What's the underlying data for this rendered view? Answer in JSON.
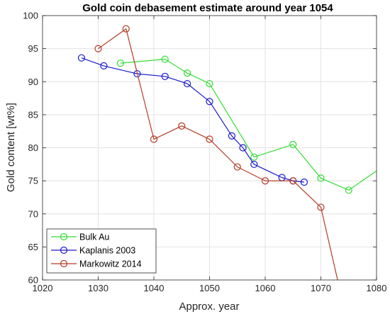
{
  "chart_data": {
    "type": "line",
    "title": "Gold coin debasement estimate around year 1054",
    "xlabel": "Approx. year",
    "ylabel": "Gold content [wt%]",
    "xlim": [
      1020,
      1080
    ],
    "ylim": [
      60,
      100
    ],
    "xticks": [
      1020,
      1030,
      1040,
      1050,
      1060,
      1070,
      1080
    ],
    "yticks": [
      60,
      65,
      70,
      75,
      80,
      85,
      90,
      95,
      100
    ],
    "xtick_labels": [
      "1020",
      "1030",
      "1040",
      "1050",
      "1060",
      "1070",
      "1080"
    ],
    "ytick_labels": [
      "60",
      "65",
      "70",
      "75",
      "80",
      "85",
      "90",
      "95",
      "100"
    ],
    "grid": true,
    "legend_position": "bottom-left",
    "series": [
      {
        "name": "Bulk Au",
        "color": "#33dd33",
        "x": [
          1034,
          1042,
          1046,
          1050,
          1058,
          1065,
          1070,
          1075,
          1080
        ],
        "y": [
          92.8,
          93.4,
          91.3,
          89.7,
          78.6,
          80.5,
          75.4,
          73.6,
          76.5
        ],
        "markers": [
          true,
          true,
          true,
          true,
          true,
          true,
          true,
          true,
          false
        ]
      },
      {
        "name": "Kaplanis 2003",
        "color": "#1a1acc",
        "x": [
          1027,
          1031,
          1037,
          1042,
          1046,
          1050,
          1054,
          1056,
          1058,
          1063,
          1065,
          1067
        ],
        "y": [
          93.6,
          92.4,
          91.2,
          90.8,
          89.7,
          87.0,
          81.8,
          80.0,
          77.5,
          75.5,
          75.0,
          74.8
        ],
        "markers": [
          true,
          true,
          true,
          true,
          true,
          true,
          true,
          true,
          true,
          true,
          true,
          true
        ]
      },
      {
        "name": "Markowitz 2014",
        "color": "#b33c26",
        "x": [
          1030,
          1035,
          1040,
          1045,
          1050,
          1055,
          1060,
          1065,
          1070,
          1073
        ],
        "y": [
          95.0,
          98.0,
          81.3,
          83.3,
          81.3,
          77.1,
          75.0,
          75.0,
          71.0,
          60.0
        ],
        "markers": [
          true,
          true,
          true,
          true,
          true,
          true,
          true,
          true,
          true,
          false
        ]
      }
    ]
  }
}
